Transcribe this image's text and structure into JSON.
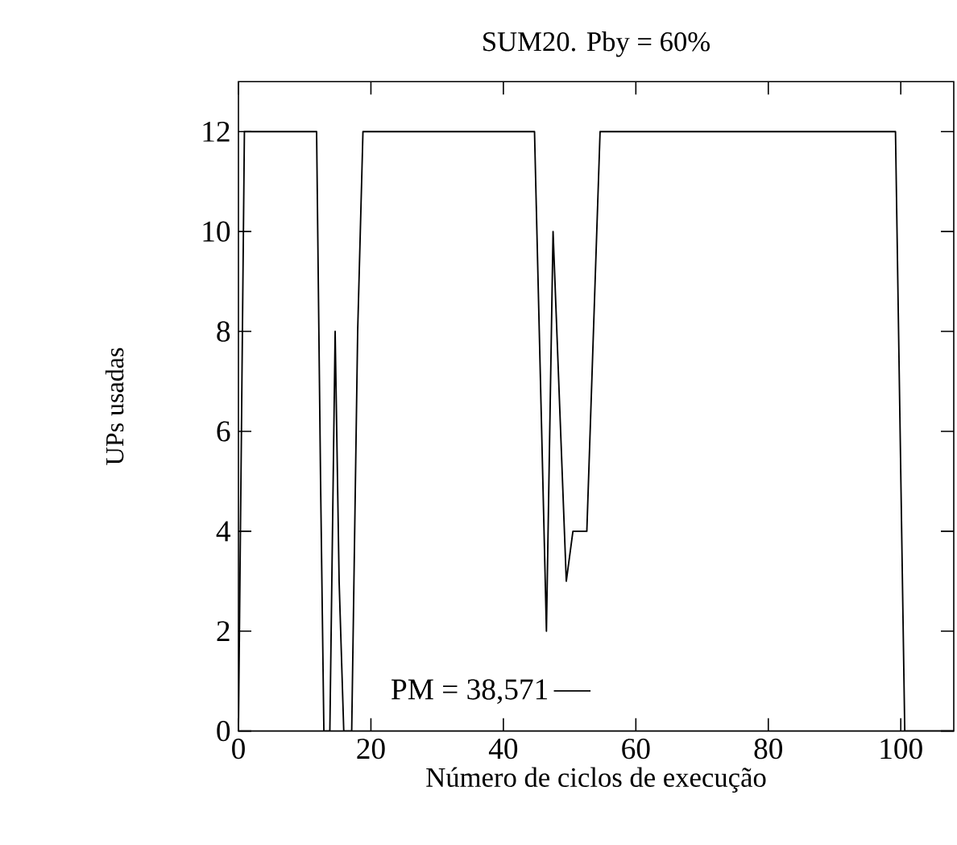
{
  "chart_data": {
    "type": "line",
    "title": "SUM20. Pby = 60%",
    "xlabel": "Número de ciclos de execução",
    "ylabel": "UPs usadas",
    "xlim": [
      0,
      108
    ],
    "ylim": [
      0,
      13
    ],
    "xticks": [
      0,
      20,
      40,
      60,
      80,
      100
    ],
    "yticks": [
      0,
      2,
      4,
      6,
      8,
      10,
      12
    ],
    "grid": false,
    "legend": "bottom",
    "marker": "none",
    "line_style": "solid",
    "series": [
      {
        "name": "PM = 38,571",
        "color": "#000000",
        "x": [
          0,
          0.9,
          11.8,
          12.4,
          12.9,
          13.8,
          14.6,
          15.2,
          15.9,
          17.1,
          18,
          18.8,
          44.7,
          46.5,
          47.5,
          49.5,
          50.5,
          52.6,
          54.6,
          99.2,
          100.6,
          108
        ],
        "values": [
          0,
          12,
          12,
          5,
          0,
          0,
          8,
          3,
          0,
          0,
          8,
          12,
          12,
          2,
          10,
          3,
          4,
          4,
          12,
          12,
          0,
          0
        ]
      }
    ]
  }
}
